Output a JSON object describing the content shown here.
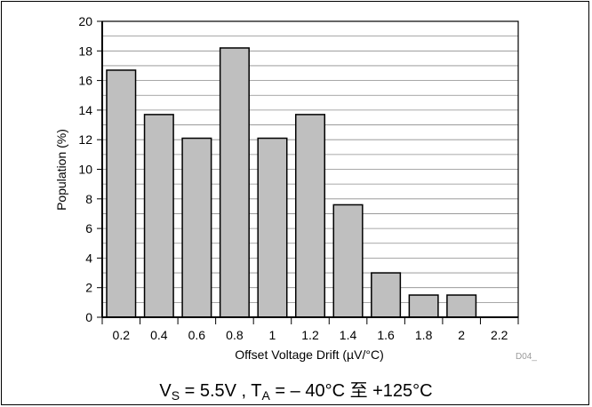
{
  "chart_data": {
    "type": "bar",
    "categories": [
      "0.2",
      "0.4",
      "0.6",
      "0.8",
      "1",
      "1.2",
      "1.4",
      "1.6",
      "1.8",
      "2",
      "2.2"
    ],
    "values": [
      16.7,
      13.7,
      12.1,
      18.2,
      12.1,
      13.7,
      7.6,
      3.0,
      1.5,
      1.5,
      0
    ],
    "title": "",
    "xlabel": "Offset Voltage Drift (µV/°C)",
    "ylabel": "Population (%)",
    "ylim": [
      0,
      20
    ],
    "yticks": [
      "0",
      "2",
      "4",
      "6",
      "8",
      "10",
      "12",
      "14",
      "16",
      "18",
      "20"
    ],
    "grid": true,
    "bar_color": "#bfbfbf",
    "figure_ref": "D04_"
  },
  "caption": {
    "vs_symbol": "V",
    "vs_sub": "S",
    "vs_value": " = 5.5V , ",
    "ta_symbol": "T",
    "ta_sub": "A",
    "ta_value": " = – 40°C 至 +125°C"
  }
}
